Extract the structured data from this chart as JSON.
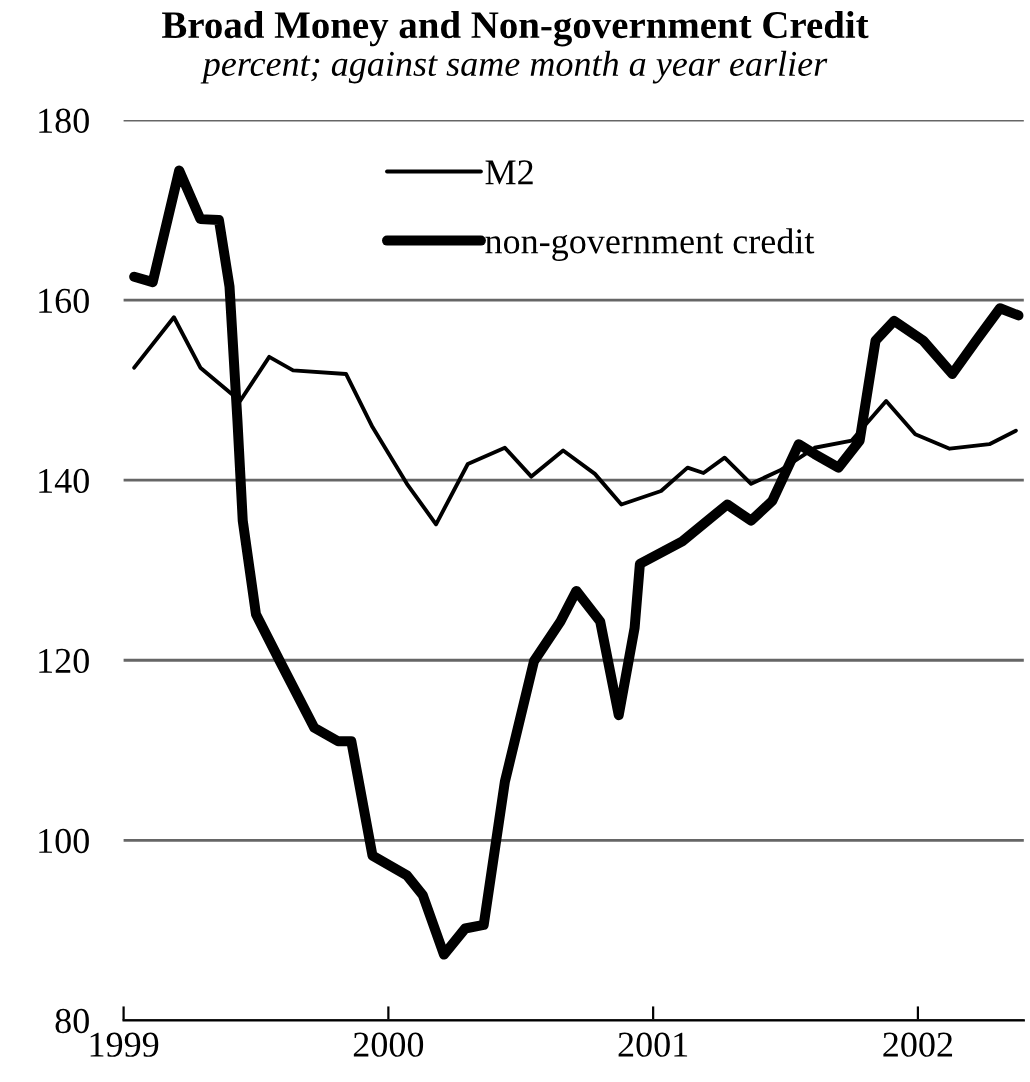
{
  "chart_data": {
    "type": "line",
    "title": "Broad Money and Non-government Credit",
    "subtitle": "percent; against same month a year earlier",
    "series": [
      {
        "name": "M2",
        "color": "#000000",
        "x": [
          1999.04,
          1999.19,
          1999.29,
          1999.44,
          1999.55,
          1999.64,
          1999.84,
          1999.94,
          2000.07,
          2000.18,
          2000.3,
          2000.44,
          2000.54,
          2000.66,
          2000.78,
          2000.88,
          2001.03,
          2001.13,
          2001.19,
          2001.27,
          2001.37,
          2001.48,
          2001.61,
          2001.75,
          2001.88,
          2001.99,
          2002.12,
          2002.27,
          2002.37
        ],
        "values": [
          152.5,
          158.1,
          152.5,
          148.8,
          153.7,
          152.2,
          151.8,
          145.9,
          139.6,
          135.1,
          141.8,
          143.6,
          140.4,
          143.3,
          140.7,
          137.3,
          138.8,
          141.4,
          140.8,
          142.5,
          139.6,
          141.1,
          143.6,
          144.4,
          148.8,
          145.1,
          143.5,
          144.0,
          145.5
        ]
      },
      {
        "name": "non-government credit",
        "color": "#000000",
        "x": [
          1999.04,
          1999.11,
          1999.21,
          1999.29,
          1999.36,
          1999.4,
          1999.43,
          1999.45,
          1999.5,
          1999.59,
          1999.72,
          1999.81,
          1999.86,
          1999.94,
          2000.07,
          2000.13,
          2000.21,
          2000.29,
          2000.36,
          2000.44,
          2000.55,
          2000.65,
          2000.71,
          2000.8,
          2000.87,
          2000.93,
          2000.95,
          2001.11,
          2001.28,
          2001.37,
          2001.45,
          2001.55,
          2001.61,
          2001.7,
          2001.78,
          2001.84,
          2001.91,
          2002.02,
          2002.13,
          2002.22,
          2002.31,
          2002.38
        ],
        "values": [
          162.6,
          162.0,
          174.4,
          169.0,
          168.9,
          161.5,
          146.6,
          135.5,
          125.1,
          119.9,
          112.5,
          111.0,
          111.0,
          98.3,
          96.1,
          93.9,
          87.3,
          90.2,
          90.6,
          106.5,
          119.9,
          124.3,
          127.7,
          124.3,
          113.9,
          123.6,
          130.7,
          133.2,
          137.3,
          135.5,
          137.7,
          144.0,
          142.9,
          141.4,
          144.4,
          155.5,
          157.7,
          155.5,
          151.8,
          155.5,
          159.1,
          158.3
        ]
      }
    ],
    "xlim": [
      1999,
      2002.4
    ],
    "xticks": [
      1999,
      2000,
      2001,
      2002
    ],
    "ylim": [
      80,
      180
    ],
    "yticks": [
      80,
      100,
      120,
      140,
      160,
      180
    ],
    "grid": "y",
    "legend": "top",
    "marker": "none",
    "line_style": "solid"
  }
}
